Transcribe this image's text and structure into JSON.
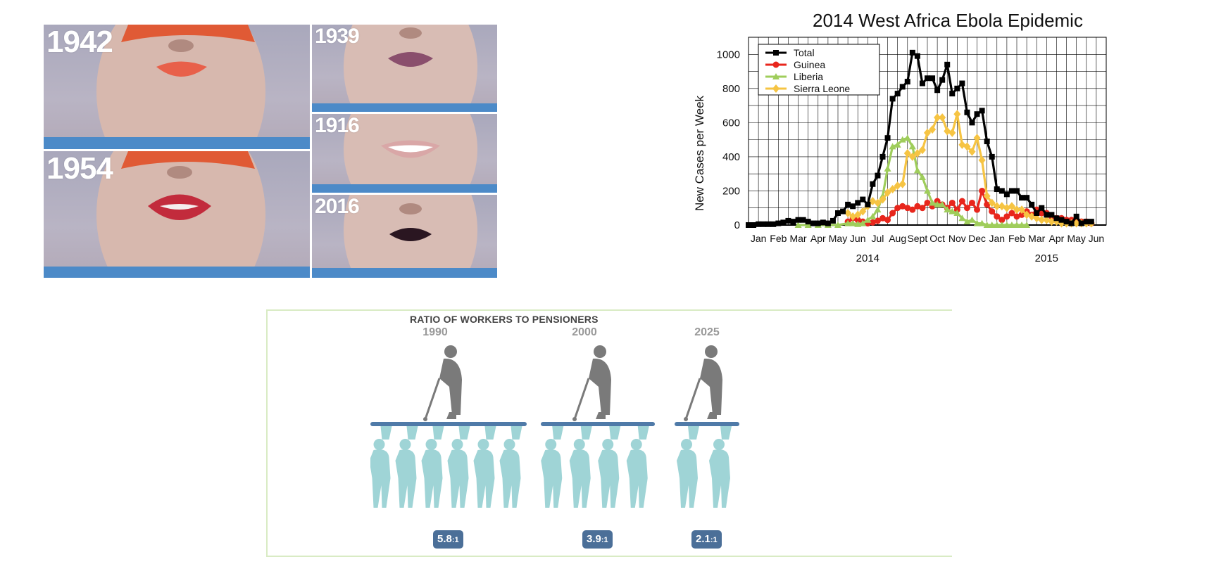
{
  "photo_collage": {
    "panels": [
      {
        "year": "1942",
        "lip_color": "#e8604a"
      },
      {
        "year": "1954",
        "lip_color": "#c22b3c"
      },
      {
        "year": "1939",
        "lip_color": "#8a4f6d"
      },
      {
        "year": "1916",
        "lip_color": "#d9a7a7"
      },
      {
        "year": "2016",
        "lip_color": "#2a1621"
      }
    ]
  },
  "ebola_chart": {
    "chart_data": {
      "type": "line",
      "title": "2014 West Africa Ebola Epidemic",
      "ylabel": "New Cases per Week",
      "xlabel": "",
      "ylim": [
        0,
        1100
      ],
      "yticks": [
        0,
        200,
        400,
        600,
        800,
        1000
      ],
      "month_labels": [
        "Jan",
        "Feb",
        "Mar",
        "Apr",
        "May",
        "Jun",
        "Jul",
        "Aug",
        "Sept",
        "Oct",
        "Nov",
        "Dec",
        "Jan",
        "Feb",
        "Mar",
        "Apr",
        "May",
        "Jun"
      ],
      "year_labels": [
        "2014",
        "2015"
      ],
      "grid": true,
      "legend_position": "top-left",
      "series": [
        {
          "name": "Total",
          "color": "#000000",
          "marker": "square",
          "x": [
            0,
            0.25,
            0.5,
            0.75,
            1,
            1.25,
            1.5,
            1.75,
            2,
            2.25,
            2.5,
            2.75,
            3,
            3.25,
            3.5,
            3.75,
            4,
            4.25,
            4.5,
            4.75,
            5,
            5.25,
            5.5,
            5.75,
            6,
            6.25,
            6.5,
            6.75,
            7,
            7.25,
            7.5,
            7.75,
            8,
            8.25,
            8.5,
            8.75,
            9,
            9.25,
            9.5,
            9.75,
            10,
            10.25,
            10.5,
            10.75,
            11,
            11.25,
            11.5,
            11.75,
            12,
            12.25,
            12.5,
            12.75,
            13,
            13.25,
            13.5,
            13.75,
            14,
            14.25,
            14.5,
            14.75,
            15,
            15.25,
            15.5,
            15.75,
            16,
            16.25,
            16.5,
            16.75,
            17,
            17.25
          ],
          "y": [
            0,
            0,
            5,
            5,
            5,
            5,
            10,
            15,
            25,
            20,
            30,
            30,
            20,
            10,
            10,
            15,
            10,
            25,
            70,
            80,
            120,
            110,
            130,
            150,
            120,
            240,
            290,
            400,
            510,
            740,
            770,
            810,
            840,
            1010,
            990,
            830,
            860,
            860,
            790,
            850,
            940,
            770,
            800,
            830,
            660,
            600,
            650,
            670,
            490,
            400,
            210,
            200,
            180,
            200,
            200,
            160,
            160,
            120,
            70,
            100,
            60,
            60,
            40,
            30,
            20,
            10,
            50,
            10,
            20,
            20
          ]
        },
        {
          "name": "Guinea",
          "color": "#e8261c",
          "marker": "circle",
          "x": [
            5,
            5.25,
            5.5,
            5.75,
            6,
            6.25,
            6.5,
            6.75,
            7,
            7.25,
            7.5,
            7.75,
            8,
            8.25,
            8.5,
            8.75,
            9,
            9.25,
            9.5,
            9.75,
            10,
            10.25,
            10.5,
            10.75,
            11,
            11.25,
            11.5,
            11.75,
            12,
            12.25,
            12.5,
            12.75,
            13,
            13.25,
            13.5,
            13.75,
            14,
            14.25,
            14.5,
            14.75,
            15,
            15.25,
            15.5,
            15.75,
            16,
            16.25,
            16.5,
            16.75,
            17,
            17.25
          ],
          "y": [
            20,
            40,
            30,
            20,
            10,
            15,
            25,
            40,
            30,
            70,
            100,
            110,
            100,
            90,
            110,
            100,
            130,
            110,
            140,
            120,
            100,
            130,
            90,
            140,
            100,
            130,
            90,
            200,
            120,
            80,
            50,
            30,
            50,
            70,
            50,
            60,
            80,
            60,
            90,
            70,
            70,
            50,
            40,
            40,
            30,
            30,
            20,
            20,
            20,
            10
          ]
        },
        {
          "name": "Liberia",
          "color": "#9fcd5b",
          "marker": "triangle",
          "x": [
            2.5,
            3,
            3.5,
            4,
            4.5,
            5,
            5.25,
            5.5,
            5.75,
            6,
            6.25,
            6.5,
            6.75,
            7,
            7.25,
            7.5,
            7.75,
            8,
            8.25,
            8.5,
            8.75,
            9,
            9.25,
            9.5,
            9.75,
            10,
            10.25,
            10.5,
            10.75,
            11,
            11.25,
            11.5,
            11.75,
            12,
            12.25,
            12.5,
            12.75,
            13,
            13.25,
            13.5,
            13.75,
            14
          ],
          "y": [
            0,
            0,
            0,
            0,
            0,
            10,
            10,
            5,
            10,
            30,
            50,
            90,
            170,
            330,
            460,
            470,
            500,
            510,
            460,
            320,
            280,
            200,
            130,
            120,
            120,
            90,
            80,
            70,
            40,
            20,
            30,
            10,
            10,
            0,
            0,
            0,
            0,
            0,
            0,
            0,
            0,
            0
          ]
        },
        {
          "name": "Sierra Leone",
          "color": "#f6c443",
          "marker": "diamond",
          "x": [
            5,
            5.25,
            5.5,
            5.75,
            6,
            6.25,
            6.5,
            6.75,
            7,
            7.25,
            7.5,
            7.75,
            8,
            8.25,
            8.5,
            8.75,
            9,
            9.25,
            9.5,
            9.75,
            10,
            10.25,
            10.5,
            10.75,
            11,
            11.25,
            11.5,
            11.75,
            12,
            12.25,
            12.5,
            12.75,
            13,
            13.25,
            13.5,
            13.75,
            14,
            14.25,
            14.5,
            14.75,
            15,
            15.25,
            15.5,
            15.75,
            16,
            16.25,
            16.5,
            16.75,
            17,
            17.25
          ],
          "y": [
            70,
            50,
            60,
            80,
            110,
            140,
            130,
            150,
            190,
            210,
            230,
            240,
            420,
            400,
            420,
            440,
            540,
            560,
            630,
            630,
            550,
            540,
            650,
            470,
            460,
            430,
            510,
            380,
            170,
            130,
            110,
            110,
            100,
            110,
            90,
            90,
            60,
            50,
            40,
            30,
            30,
            20,
            20,
            10,
            10,
            10,
            10,
            10,
            10,
            10
          ]
        }
      ]
    }
  },
  "pension_chart": {
    "title": "RATIO OF WORKERS TO PENSIONERS",
    "colors": {
      "pensioner": "#7a7a7a",
      "worker": "#9fd4d6",
      "platform": "#4f7aa8",
      "badge": "#4b6f98",
      "frame": "#d9ebc4"
    },
    "chart_data": {
      "type": "bar",
      "title": "RATIO OF WORKERS TO PENSIONERS",
      "categories": [
        "1990",
        "2000",
        "2025"
      ],
      "values": [
        5.8,
        3.9,
        2.1
      ],
      "labels": [
        "5.8:1",
        "3.9:1",
        "2.1:1"
      ],
      "workers_drawn": [
        6,
        4,
        2
      ],
      "xlabel": "",
      "ylabel": ""
    },
    "columns": [
      {
        "year": "1990",
        "ratio_main": "5.8",
        "ratio_suffix": ":1"
      },
      {
        "year": "2000",
        "ratio_main": "3.9",
        "ratio_suffix": ":1"
      },
      {
        "year": "2025",
        "ratio_main": "2.1",
        "ratio_suffix": ":1"
      }
    ]
  }
}
